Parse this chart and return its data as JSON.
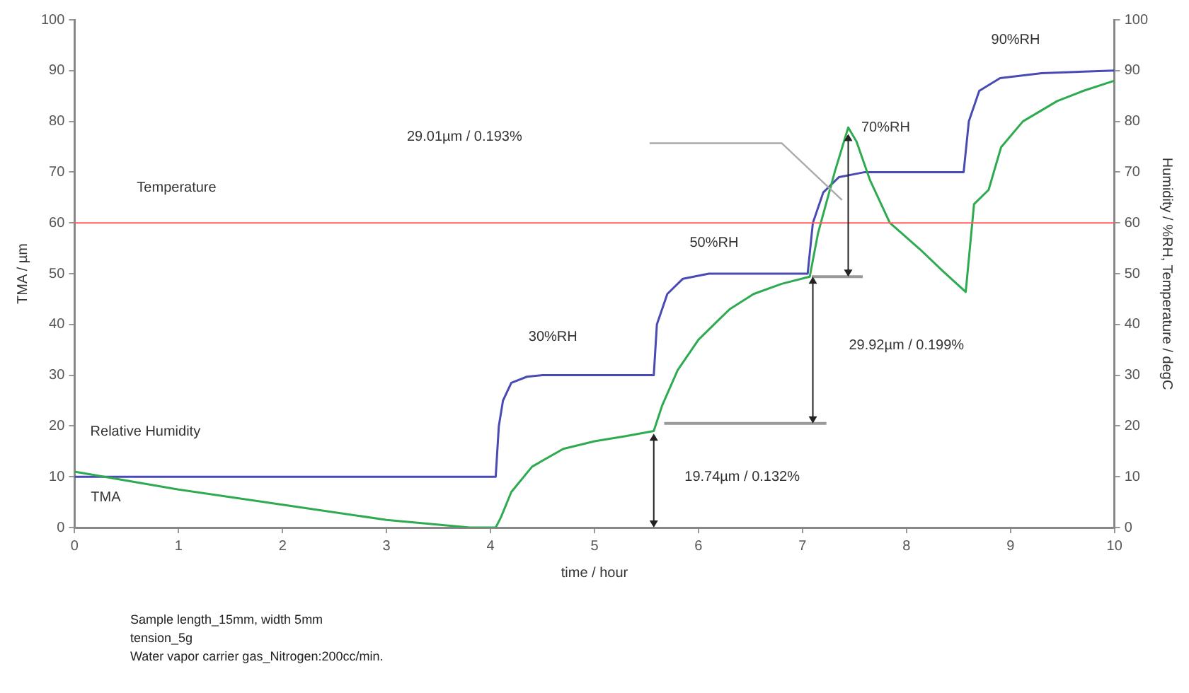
{
  "chart_data": {
    "type": "line",
    "xlabel": "time / hour",
    "ylabel": "TMA / µm",
    "y2label": "Humidity / %RH, Temperature / degC",
    "xlim": [
      0,
      10
    ],
    "xticks": [
      0,
      1,
      2,
      3,
      4,
      5,
      6,
      7,
      8,
      9,
      10
    ],
    "ylim": [
      0,
      100
    ],
    "yticks": [
      0,
      10,
      20,
      30,
      40,
      50,
      60,
      70,
      80,
      90,
      100
    ],
    "y2lim": [
      0,
      100
    ],
    "y2ticks": [
      0,
      10,
      20,
      30,
      40,
      50,
      60,
      70,
      80,
      90,
      100
    ],
    "grid": false,
    "legend": false,
    "marker": "none",
    "line_style": "solid",
    "series": [
      {
        "name": "TMA",
        "color": "#2eaa50",
        "x": [
          0,
          1,
          2,
          3,
          3.8,
          4.05,
          4.1,
          4.2,
          4.4,
          4.7,
          5.0,
          5.3,
          5.57,
          5.65,
          5.8,
          6.0,
          6.3,
          6.53,
          6.8,
          7.07,
          7.15,
          7.31,
          7.44,
          7.52,
          7.65,
          7.84,
          8.13,
          8.35,
          8.57,
          8.65,
          8.79,
          8.91,
          9.12,
          9.45,
          9.7,
          10
        ],
        "values": [
          11,
          7.5,
          4.5,
          1.5,
          0,
          0,
          2,
          7,
          12,
          15.5,
          17,
          18,
          19,
          24,
          31,
          37,
          43,
          46,
          48,
          49.4,
          58,
          70,
          78.8,
          76,
          68.4,
          60,
          54.8,
          50.5,
          46.4,
          63.7,
          66.5,
          74.9,
          80,
          84,
          86,
          88
        ]
      },
      {
        "name": "Relative Humidity",
        "color": "#4a4ab4",
        "axis": "y2",
        "x": [
          0,
          4.05,
          4.08,
          4.12,
          4.2,
          4.35,
          4.5,
          5.57,
          5.6,
          5.7,
          5.85,
          6.1,
          7.05,
          7.1,
          7.2,
          7.35,
          7.6,
          8.55,
          8.6,
          8.7,
          8.9,
          9.3,
          10
        ],
        "values": [
          10,
          10,
          20,
          25,
          28.5,
          29.7,
          30,
          30,
          40,
          46,
          49,
          50,
          50,
          60,
          66,
          69,
          70,
          70,
          80,
          86,
          88.5,
          89.5,
          90
        ]
      }
    ],
    "ref_lines": [
      {
        "axis": "y2",
        "value": 60,
        "color": "#ff6060",
        "label": "Temperature"
      }
    ],
    "annotations": [
      "30%RH",
      "50%RH",
      "70%RH",
      "90%RH",
      "29.01µm / 0.193%",
      "29.92µm / 0.199%",
      "19.74µm / 0.132%",
      "Sample length_15mm, width 5mm",
      "tension_5g",
      "Water vapor carrier gas_Nitrogen:200cc/min."
    ]
  }
}
